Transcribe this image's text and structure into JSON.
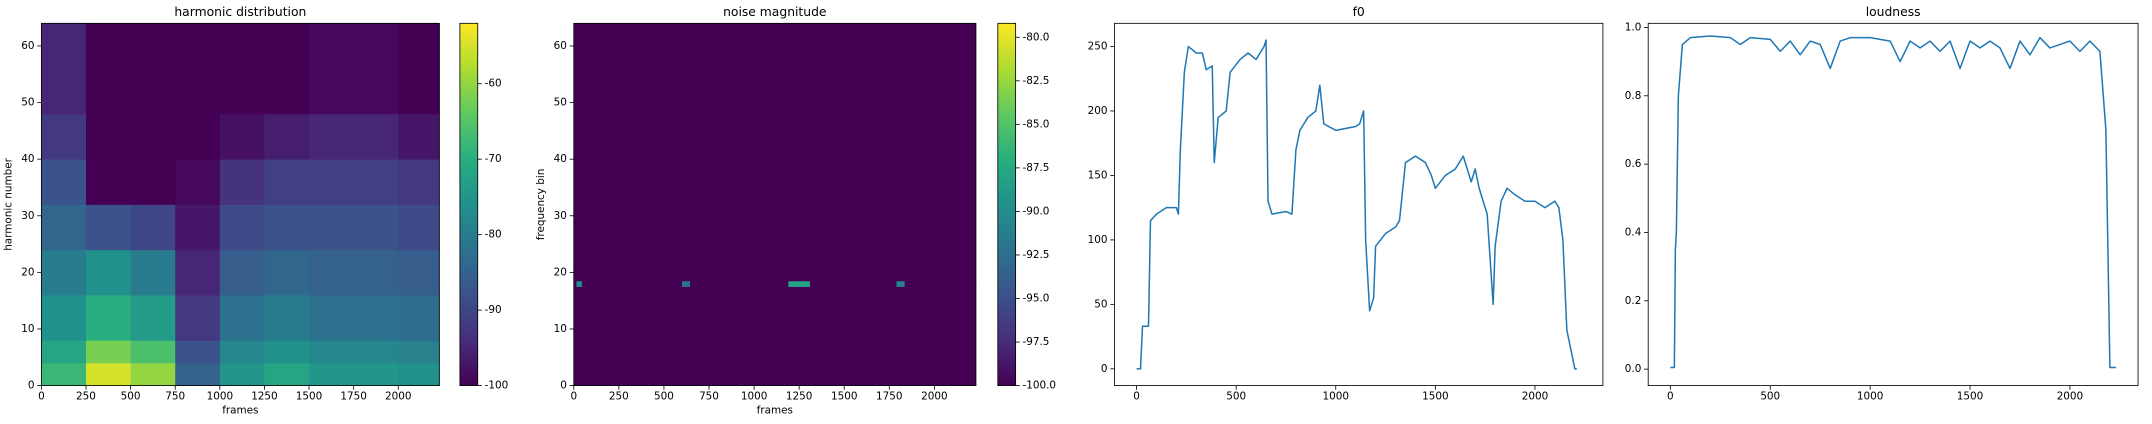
{
  "chart_data": [
    {
      "type": "heatmap",
      "title": "harmonic distribution",
      "xlabel": "frames",
      "ylabel": "harmonic number",
      "colormap": "viridis",
      "xbins": [
        0,
        250,
        500,
        750,
        1000,
        1250,
        1500,
        1750,
        2000,
        2230
      ],
      "ybins": [
        0,
        4,
        8,
        16,
        24,
        32,
        40,
        48,
        64
      ],
      "values": [
        [
          -68,
          -55,
          -60,
          -85,
          -75,
          -72,
          -75,
          -75,
          -76
        ],
        [
          -72,
          -62,
          -66,
          -88,
          -78,
          -76,
          -78,
          -78,
          -79
        ],
        [
          -76,
          -70,
          -74,
          -92,
          -82,
          -80,
          -82,
          -82,
          -83
        ],
        [
          -80,
          -76,
          -80,
          -95,
          -86,
          -84,
          -85,
          -85,
          -86
        ],
        [
          -84,
          -88,
          -90,
          -97,
          -89,
          -88,
          -88,
          -88,
          -89
        ],
        [
          -88,
          -100,
          -100,
          -99,
          -93,
          -91,
          -91,
          -91,
          -92
        ],
        [
          -92,
          -100,
          -100,
          -100,
          -98,
          -96,
          -95,
          -95,
          -97
        ],
        [
          -95,
          -100,
          -100,
          -100,
          -100,
          -100,
          -99,
          -99,
          -100
        ]
      ],
      "xlim": [
        0,
        2230
      ],
      "ylim": [
        0,
        64
      ],
      "xticks": [
        0,
        250,
        500,
        750,
        1000,
        1250,
        1500,
        1750,
        2000
      ],
      "yticks": [
        0,
        10,
        20,
        30,
        40,
        50,
        60
      ],
      "zlim": [
        -100,
        -52
      ],
      "zticks": [
        -100,
        -90,
        -80,
        -70,
        -60
      ]
    },
    {
      "type": "heatmap",
      "title": "noise magnitude",
      "xlabel": "frames",
      "ylabel": "frequency bin",
      "colormap": "viridis",
      "xbins": [
        0,
        15,
        45,
        600,
        645,
        1190,
        1310,
        1790,
        1835,
        2230
      ],
      "ybins": [
        0,
        17.5,
        18.5,
        64
      ],
      "values": [
        [
          -100,
          -100,
          -100,
          -100,
          -100,
          -100,
          -100,
          -100,
          -100
        ],
        [
          -100,
          -90,
          -100,
          -92,
          -100,
          -88,
          -100,
          -91,
          -100
        ],
        [
          -100,
          -100,
          -100,
          -100,
          -100,
          -100,
          -100,
          -100,
          -100
        ]
      ],
      "xlim": [
        0,
        2230
      ],
      "ylim": [
        0,
        64
      ],
      "xticks": [
        0,
        250,
        500,
        750,
        1000,
        1250,
        1500,
        1750,
        2000
      ],
      "yticks": [
        0,
        10,
        20,
        30,
        40,
        50,
        60
      ],
      "zlim": [
        -100,
        -79.2
      ],
      "zticks": [
        {
          "value": -100,
          "label": "-100.0"
        },
        -97.5,
        {
          "value": -95,
          "label": "-95.0"
        },
        -92.5,
        {
          "value": -90,
          "label": "-90.0"
        },
        -87.5,
        {
          "value": -85,
          "label": "-85.0"
        },
        -82.5,
        {
          "value": -80,
          "label": "-80.0"
        }
      ]
    },
    {
      "type": "line",
      "title": "f0",
      "color": "#1f77b4",
      "x": [
        0,
        20,
        30,
        60,
        70,
        100,
        150,
        200,
        210,
        220,
        240,
        260,
        300,
        330,
        350,
        380,
        390,
        410,
        450,
        470,
        520,
        560,
        600,
        640,
        650,
        660,
        680,
        750,
        780,
        800,
        820,
        860,
        900,
        920,
        940,
        1000,
        1100,
        1120,
        1140,
        1150,
        1170,
        1190,
        1200,
        1250,
        1300,
        1320,
        1350,
        1400,
        1450,
        1480,
        1500,
        1550,
        1600,
        1640,
        1680,
        1700,
        1720,
        1760,
        1790,
        1800,
        1830,
        1860,
        1900,
        1950,
        2000,
        2050,
        2100,
        2120,
        2140,
        2160,
        2200,
        2210
      ],
      "values": [
        0,
        0,
        33,
        33,
        115,
        120,
        125,
        125,
        120,
        170,
        230,
        250,
        245,
        245,
        232,
        235,
        160,
        195,
        200,
        230,
        240,
        245,
        240,
        250,
        255,
        130,
        120,
        122,
        120,
        170,
        185,
        195,
        200,
        220,
        190,
        185,
        188,
        190,
        200,
        100,
        45,
        55,
        95,
        105,
        110,
        115,
        160,
        165,
        160,
        150,
        140,
        150,
        155,
        165,
        145,
        155,
        140,
        120,
        50,
        95,
        130,
        140,
        135,
        130,
        130,
        125,
        130,
        125,
        100,
        30,
        0,
        0
      ],
      "xlim": [
        -111,
        2341
      ],
      "ylim": [
        -13,
        268
      ],
      "xticks": [
        0,
        500,
        1000,
        1500,
        2000
      ],
      "yticks": [
        0,
        50,
        100,
        150,
        200,
        250
      ]
    },
    {
      "type": "line",
      "title": "loudness",
      "color": "#1f77b4",
      "x": [
        0,
        20,
        25,
        30,
        40,
        60,
        100,
        200,
        300,
        350,
        400,
        500,
        550,
        600,
        650,
        700,
        750,
        800,
        850,
        900,
        1000,
        1100,
        1150,
        1200,
        1250,
        1300,
        1350,
        1400,
        1450,
        1500,
        1550,
        1600,
        1650,
        1700,
        1750,
        1800,
        1850,
        1900,
        2000,
        2050,
        2100,
        2150,
        2180,
        2200,
        2230
      ],
      "values": [
        0.005,
        0.005,
        0.35,
        0.4,
        0.8,
        0.95,
        0.97,
        0.975,
        0.97,
        0.95,
        0.97,
        0.965,
        0.93,
        0.96,
        0.92,
        0.96,
        0.95,
        0.88,
        0.96,
        0.97,
        0.97,
        0.96,
        0.9,
        0.96,
        0.94,
        0.96,
        0.93,
        0.96,
        0.88,
        0.96,
        0.94,
        0.96,
        0.94,
        0.88,
        0.96,
        0.92,
        0.97,
        0.94,
        0.96,
        0.93,
        0.96,
        0.93,
        0.7,
        0.005,
        0.005
      ],
      "xlim": [
        -111,
        2341
      ],
      "ylim": [
        -0.048,
        1.012
      ],
      "xticks": [
        0,
        500,
        1000,
        1500,
        2000
      ],
      "yticks": [
        {
          "value": 0,
          "label": "0.0"
        },
        0.2,
        0.4,
        0.6,
        0.8,
        {
          "value": 1,
          "label": "1.0"
        }
      ]
    }
  ]
}
